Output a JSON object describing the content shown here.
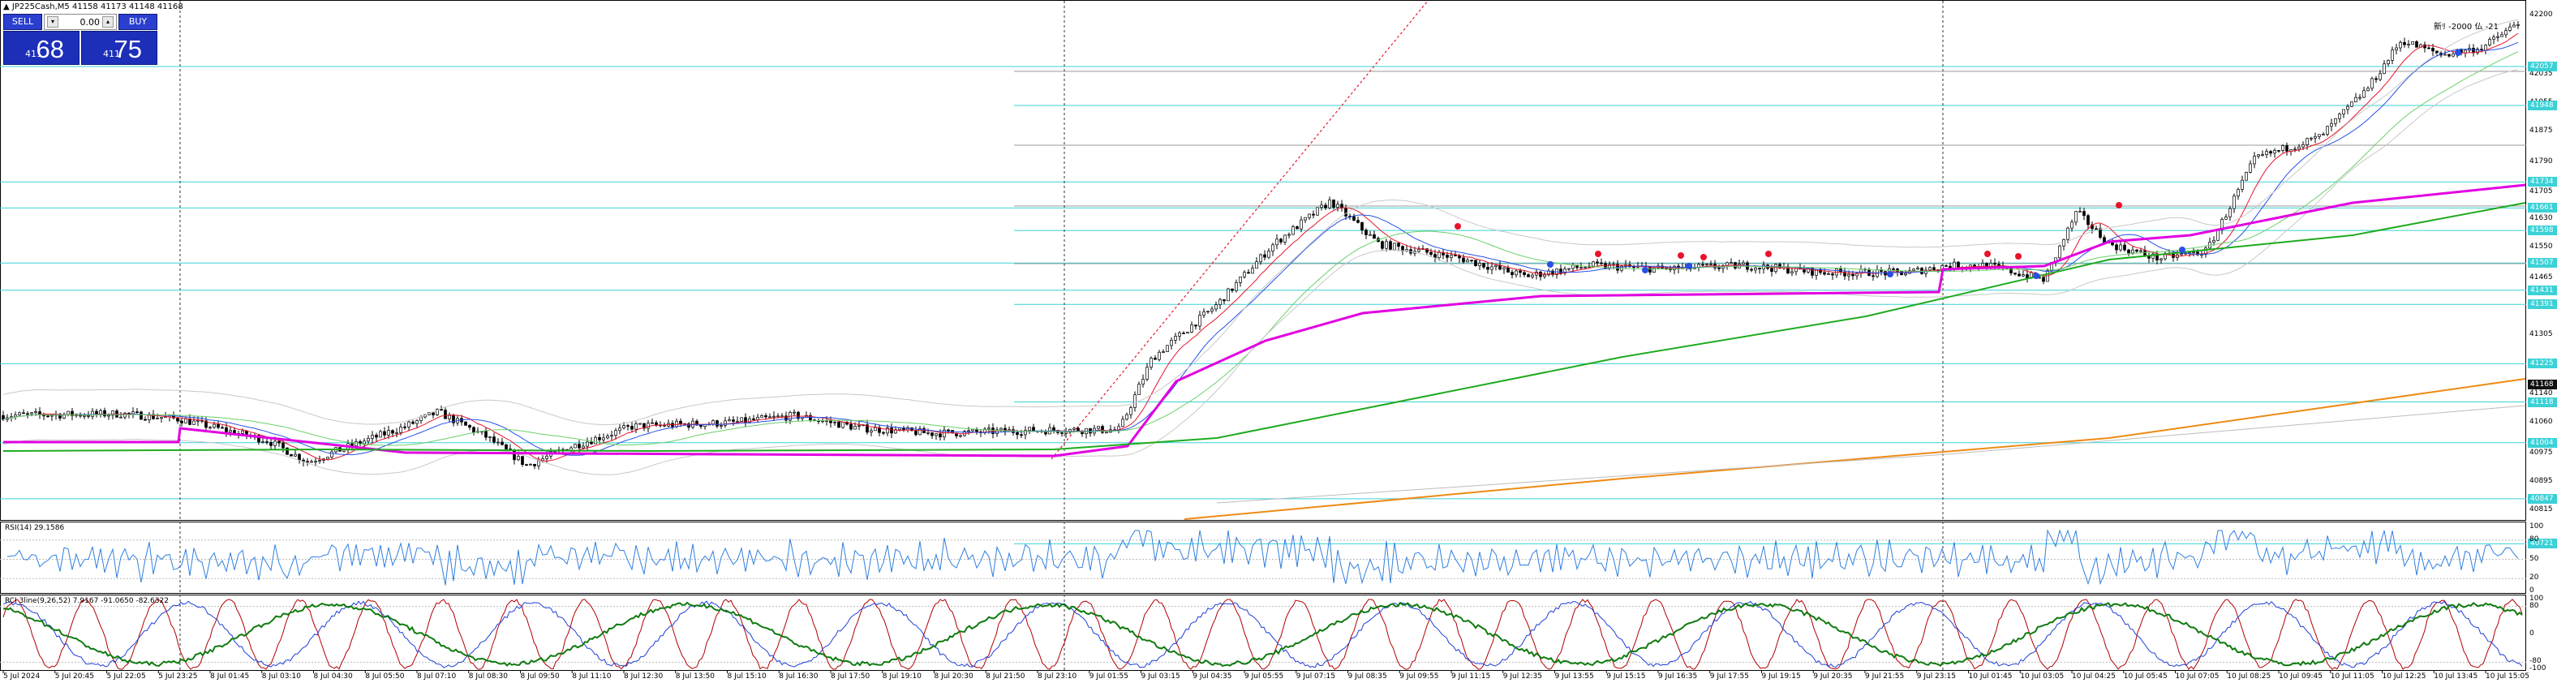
{
  "chart": {
    "title_icon": "triangle-up-icon",
    "title": "JP225Cash,M5 41158 41173 41148 41168",
    "top_right_label": "新ﾘ -2000 仏 -21"
  },
  "trade_panel": {
    "sell_label": "SELL",
    "buy_label": "BUY",
    "lot_value": "0.00",
    "sell_prefix": "411",
    "sell_big": "68",
    "buy_prefix": "411",
    "buy_big": "75",
    "sell_color": "#1d2fb8",
    "buy_color": "#1d2fb8"
  },
  "price_axis": {
    "labels": [
      "42200",
      "42035",
      "41955",
      "41875",
      "41790",
      "41705",
      "41630",
      "41550",
      "41465",
      "41385",
      "41305",
      "41220",
      "41140",
      "41060",
      "40975",
      "40895",
      "40815"
    ],
    "tags": [
      {
        "text": "42057",
        "style": "teal"
      },
      {
        "text": "41948",
        "style": "teal"
      },
      {
        "text": "41734",
        "style": "teal"
      },
      {
        "text": "41661",
        "style": "teal"
      },
      {
        "text": "41598",
        "style": "teal"
      },
      {
        "text": "41507",
        "style": "teal"
      },
      {
        "text": "41431",
        "style": "teal"
      },
      {
        "text": "41391",
        "style": "teal"
      },
      {
        "text": "41225",
        "style": "teal"
      },
      {
        "text": "41168",
        "style": "last"
      },
      {
        "text": "41118",
        "style": "teal"
      },
      {
        "text": "41004",
        "style": "teal"
      },
      {
        "text": "40847",
        "style": "teal"
      },
      {
        "text": "40721",
        "style": "teal"
      }
    ]
  },
  "rsi": {
    "label": "RSI(14) 29.1586",
    "scale": [
      "100",
      "80",
      "50",
      "20",
      "0"
    ]
  },
  "rci": {
    "label": "RCI 3line(9,26,52) 7.9167 -91.0650 -82.6322",
    "scale": [
      "100",
      "80",
      "0",
      "-80",
      "-100"
    ]
  },
  "time_axis": [
    "5 Jul 2024",
    "5 Jul 20:45",
    "5 Jul 22:05",
    "5 Jul 23:25",
    "8 Jul 01:45",
    "8 Jul 03:10",
    "8 Jul 04:30",
    "8 Jul 05:50",
    "8 Jul 07:10",
    "8 Jul 08:30",
    "8 Jul 09:50",
    "8 Jul 11:10",
    "8 Jul 12:30",
    "8 Jul 13:50",
    "8 Jul 15:10",
    "8 Jul 16:30",
    "8 Jul 17:50",
    "8 Jul 19:10",
    "8 Jul 20:30",
    "8 Jul 21:50",
    "8 Jul 23:10",
    "9 Jul 01:55",
    "9 Jul 03:15",
    "9 Jul 04:35",
    "9 Jul 05:55",
    "9 Jul 07:15",
    "9 Jul 08:35",
    "9 Jul 09:55",
    "9 Jul 11:15",
    "9 Jul 12:35",
    "9 Jul 13:55",
    "9 Jul 15:15",
    "9 Jul 16:35",
    "9 Jul 17:55",
    "9 Jul 19:15",
    "9 Jul 20:35",
    "9 Jul 21:55",
    "9 Jul 23:15",
    "10 Jul 01:45",
    "10 Jul 03:05",
    "10 Jul 04:25",
    "10 Jul 05:45",
    "10 Jul 07:05",
    "10 Jul 08:25",
    "10 Jul 09:45",
    "10 Jul 11:05",
    "10 Jul 12:25",
    "10 Jul 13:45",
    "10 Jul 15:05"
  ],
  "colors": {
    "teal_line": "#3bd1d6",
    "magenta": "#e100e1",
    "green": "#1faa1f",
    "orange": "#ee8a14",
    "blue": "#2750e6",
    "red_dots": "#e8142a",
    "rsi_line": "#2f7fe0",
    "rci_red": "#b00000",
    "rci_blue": "#1e3fd8",
    "rci_green": "#0f7a0f"
  }
}
